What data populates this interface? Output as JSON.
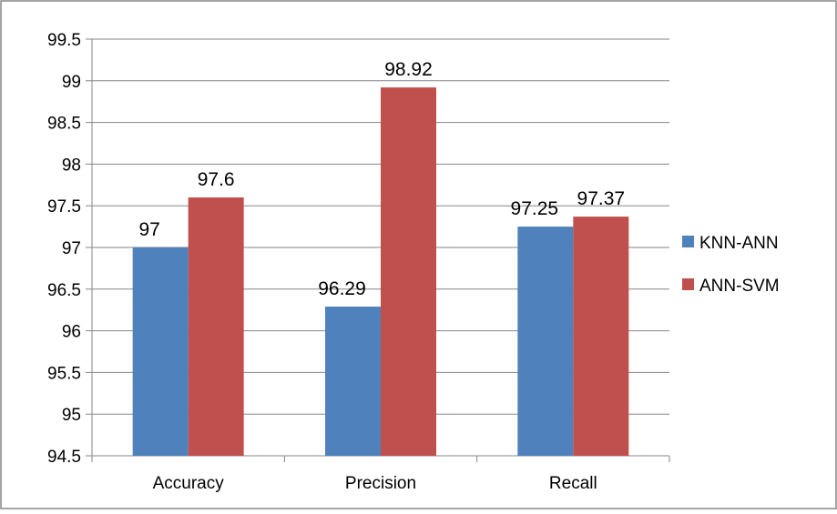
{
  "chart_data": {
    "type": "bar",
    "title": "",
    "xlabel": "",
    "ylabel": "",
    "categories": [
      "Accuracy",
      "Precision",
      "Recall"
    ],
    "series": [
      {
        "name": "KNN-ANN",
        "values": [
          97,
          96.29,
          97.25
        ],
        "labels": [
          "97",
          "96.29",
          "97.25"
        ]
      },
      {
        "name": "ANN-SVM",
        "values": [
          97.6,
          98.92,
          97.37
        ],
        "labels": [
          "97.6",
          "98.92",
          "97.37"
        ]
      }
    ],
    "ylim": [
      94.5,
      99.5
    ],
    "y_ticks": [
      "94.5",
      "95",
      "95.5",
      "96",
      "96.5",
      "97",
      "97.5",
      "98",
      "98.5",
      "99",
      "99.5"
    ],
    "grid": true,
    "legend_position": "right",
    "colors": [
      "#4f81bd",
      "#c0504d"
    ]
  }
}
